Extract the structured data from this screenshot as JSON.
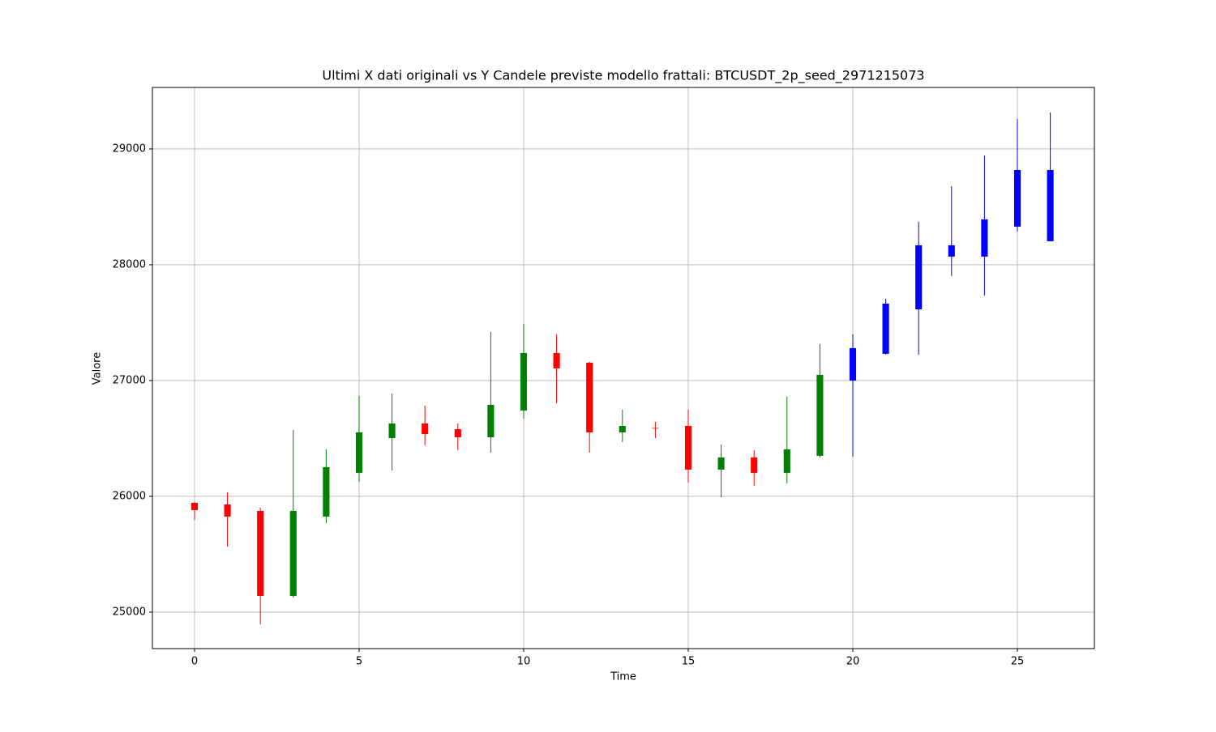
{
  "chart_data": {
    "type": "candlestick",
    "title": "Ultimi X dati originali vs Y Candele previste modello frattali: BTCUSDT_2p_seed_2971215073",
    "x_label": "Time",
    "y_label": "Valore",
    "x": [
      0,
      1,
      2,
      3,
      4,
      5,
      6,
      7,
      8,
      9,
      10,
      11,
      12,
      13,
      14,
      15,
      16,
      17,
      18,
      19,
      20,
      21,
      22,
      23,
      24,
      25,
      26
    ],
    "open": [
      25944,
      25930,
      25874,
      25140,
      25825,
      26203,
      26503,
      26629,
      26580,
      26510,
      26741,
      27238,
      27154,
      26552,
      26590,
      26608,
      26231,
      26336,
      26203,
      26350,
      27000,
      27231,
      27615,
      28070,
      28070,
      28329,
      28203
    ],
    "high": [
      25950,
      26035,
      25902,
      26573,
      26406,
      26867,
      26888,
      26783,
      26629,
      27420,
      27490,
      27399,
      27161,
      26748,
      26643,
      26748,
      26448,
      26399,
      26860,
      27315,
      27399,
      27706,
      28371,
      28678,
      28944,
      29259,
      29315
    ],
    "low": [
      25797,
      25566,
      24895,
      25126,
      25769,
      26126,
      26224,
      26441,
      26399,
      26378,
      26671,
      26804,
      26378,
      26469,
      26503,
      26119,
      25993,
      26091,
      26112,
      26336,
      26343,
      27224,
      27224,
      27902,
      27734,
      28287,
      28203
    ],
    "close": [
      25881,
      25825,
      25140,
      25874,
      26252,
      26552,
      26629,
      26538,
      26510,
      26790,
      27238,
      27105,
      26552,
      26608,
      26585,
      26231,
      26336,
      26203,
      26406,
      27049,
      27280,
      27664,
      28168,
      28168,
      28392,
      28818,
      28818
    ],
    "colors": [
      "#ff0000",
      "#ff0000",
      "#ff0000",
      "#008000",
      "#008000",
      "#008000",
      "#008000",
      "#ff0000",
      "#ff0000",
      "#008000",
      "#008000",
      "#ff0000",
      "#ff0000",
      "#008000",
      "#ff0000",
      "#ff0000",
      "#008000",
      "#ff0000",
      "#008000",
      "#008000",
      "#0000ff",
      "#0000ff",
      "#0000ff",
      "#0000ff",
      "#0000ff",
      "#0000ff",
      "#0000ff"
    ],
    "xlim": [
      -1.28,
      27.34
    ],
    "ylim": [
      24685,
      29531
    ],
    "xticks": [
      0,
      5,
      10,
      15,
      20,
      25
    ],
    "yticks": [
      25000,
      26000,
      27000,
      28000,
      29000
    ],
    "grid": true
  }
}
